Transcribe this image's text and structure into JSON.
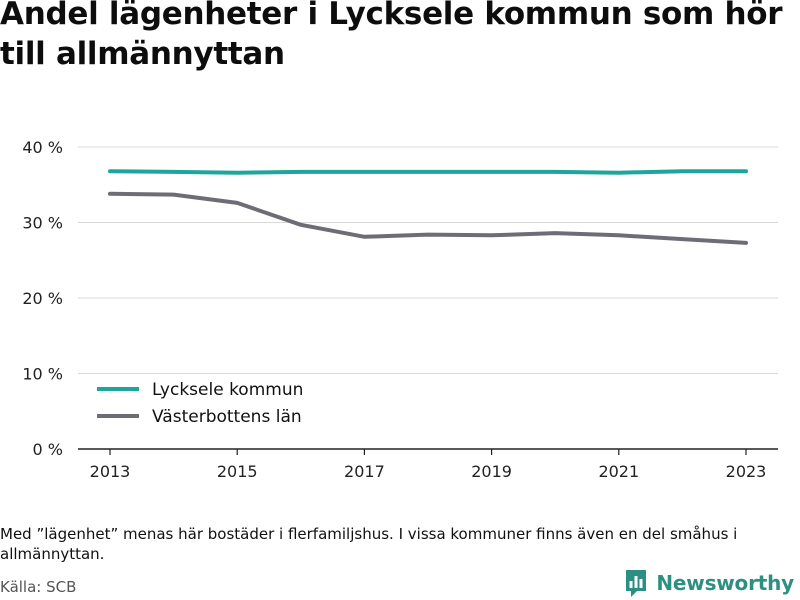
{
  "title": "Andel lägenheter i Lycksele kommun som hör till allmännyttan",
  "note": "Med ”lägenhet” menas här bostäder i flerfamiljshus. I vissa kommuner finns även en del småhus i allmännyttan.",
  "source": "Källa: SCB",
  "brand": {
    "name": "Newsworthy",
    "logo_icon": "bar-chart-speech-bubble-icon"
  },
  "colors": {
    "lycksele": "#1ea69a",
    "vasterbotten": "#6e6d75",
    "grid": "#d9d9d9",
    "brand": "#2d8f82"
  },
  "chart_data": {
    "type": "line",
    "title": "Andel lägenheter i Lycksele kommun som hör till allmännyttan",
    "xlabel": "",
    "ylabel": "",
    "x": [
      2013,
      2014,
      2015,
      2016,
      2017,
      2018,
      2019,
      2020,
      2021,
      2022,
      2023
    ],
    "x_ticks": [
      "2013",
      "2015",
      "2017",
      "2019",
      "2021",
      "2023"
    ],
    "x_tick_values": [
      2013,
      2015,
      2017,
      2019,
      2021,
      2023
    ],
    "y_ticks": [
      "0 %",
      "10 %",
      "20 %",
      "30 %",
      "40 %"
    ],
    "y_tick_values": [
      0,
      10,
      20,
      30,
      40
    ],
    "ylim": [
      0,
      40
    ],
    "grid": true,
    "legend_position": "bottom-left",
    "series": [
      {
        "name": "Lycksele kommun",
        "color": "#1ea69a",
        "values": [
          36.8,
          36.7,
          36.6,
          36.7,
          36.7,
          36.7,
          36.7,
          36.7,
          36.6,
          36.8,
          36.8
        ]
      },
      {
        "name": "Västerbottens län",
        "color": "#6e6d75",
        "values": [
          33.8,
          33.7,
          32.6,
          29.7,
          28.1,
          28.4,
          28.3,
          28.6,
          28.3,
          27.8,
          27.3
        ]
      }
    ]
  }
}
